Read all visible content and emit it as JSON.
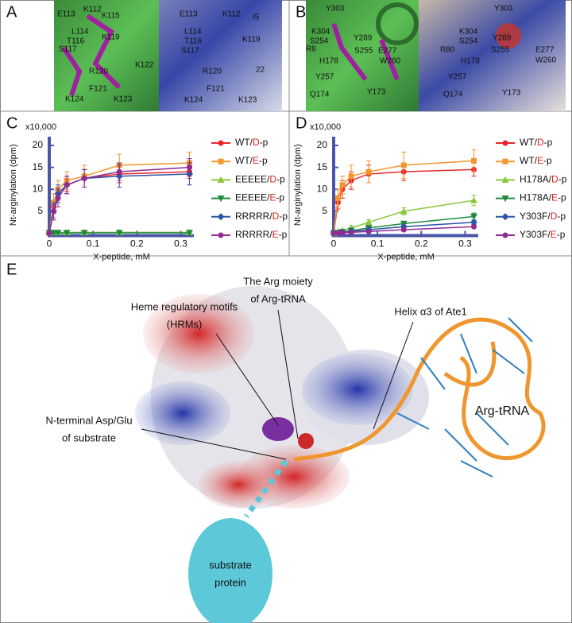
{
  "panel_labels": [
    "A",
    "B",
    "C",
    "D",
    "E"
  ],
  "panel_a": {
    "left_labels": [
      "E113",
      "K112",
      "K115",
      "L114",
      "T116",
      "K119",
      "S117",
      "K122",
      "R120",
      "F121",
      "K124",
      "K123"
    ],
    "right_labels": [
      "E113",
      "K112",
      "I5",
      "L114",
      "T116",
      "K119",
      "S117",
      "R120",
      "22",
      "F121",
      "K124",
      "K123"
    ]
  },
  "panel_b": {
    "left_labels": [
      "Y303",
      "K304",
      "S254",
      "Y289",
      "R8",
      "S255",
      "E277",
      "W260",
      "H178",
      "Y257",
      "Q174",
      "Y173"
    ],
    "right_labels": [
      "Y303",
      "K304",
      "S254",
      "Y289",
      "R80",
      "S255",
      "E277",
      "W260",
      "H178",
      "Y257",
      "Q174",
      "Y173"
    ]
  },
  "chart_data": [
    {
      "type": "line",
      "y_unit": "x10,000",
      "x_label": "X-peptide, mM",
      "y_label": "Nt-arginylation (dpm)",
      "x": [
        0,
        0.01,
        0.02,
        0.04,
        0.08,
        0.16,
        0.32
      ],
      "xlim": [
        0,
        0.33
      ],
      "xticks": [
        0,
        0.1,
        0.2,
        0.3
      ],
      "ylim": [
        0,
        22
      ],
      "yticks": [
        5,
        10,
        15,
        20
      ],
      "series": [
        {
          "name": "WT/D-p",
          "color": "#e8262b",
          "marker": "circle",
          "values": [
            0,
            6,
            9,
            11,
            12.5,
            13.5,
            14
          ],
          "errors": [
            0,
            1.5,
            1.5,
            1.5,
            2,
            2,
            1.5
          ]
        },
        {
          "name": "WT/E-p",
          "color": "#f3962c",
          "marker": "square",
          "values": [
            0,
            7,
            10,
            12,
            13,
            15.5,
            16
          ],
          "errors": [
            0,
            2,
            2,
            2,
            2.5,
            2.5,
            2.5
          ]
        },
        {
          "name": "EEEEE/D-p",
          "color": "#8cc63f",
          "marker": "triangle-up",
          "values": [
            0.2,
            0.2,
            0.2,
            0.2,
            0.2,
            0.2,
            0.2
          ],
          "errors": [
            0,
            0,
            0,
            0,
            0,
            0,
            0
          ]
        },
        {
          "name": "EEEEE/E-p",
          "color": "#1f8a3c",
          "marker": "triangle-down",
          "values": [
            0.1,
            0.1,
            0.1,
            0.1,
            0.1,
            0.1,
            0.1
          ],
          "errors": [
            0,
            0,
            0,
            0,
            0,
            0,
            0
          ]
        },
        {
          "name": "RRRRR/D-p",
          "color": "#2b55a5",
          "marker": "diamond",
          "values": [
            0,
            5,
            9,
            11,
            12.5,
            13,
            13.5
          ],
          "errors": [
            0,
            2,
            2,
            2,
            2,
            2.5,
            2.5
          ]
        },
        {
          "name": "RRRRR/E-p",
          "color": "#8e2c92",
          "marker": "circle",
          "values": [
            0,
            5,
            8,
            11,
            12.5,
            14,
            15
          ],
          "errors": [
            0,
            1.5,
            2,
            2,
            2,
            2,
            2
          ]
        }
      ]
    },
    {
      "type": "line",
      "y_unit": "x10,000",
      "x_label": "X-peptide, mM",
      "y_label": "Nt-arginylation (dpm)",
      "x": [
        0,
        0.01,
        0.02,
        0.04,
        0.08,
        0.16,
        0.32
      ],
      "xlim": [
        0,
        0.33
      ],
      "xticks": [
        0,
        0.1,
        0.2,
        0.3
      ],
      "ylim": [
        0,
        22
      ],
      "yticks": [
        5,
        10,
        15,
        20
      ],
      "series": [
        {
          "name": "WT/D-p",
          "color": "#e8262b",
          "marker": "circle",
          "values": [
            0,
            7,
            10,
            12,
            13.5,
            14,
            14.5
          ],
          "errors": [
            0,
            1.5,
            2,
            2,
            2,
            2,
            1.5
          ]
        },
        {
          "name": "WT/E-p",
          "color": "#f3962c",
          "marker": "square",
          "values": [
            0,
            8,
            11,
            13,
            14,
            15.5,
            16.5
          ],
          "errors": [
            0,
            2,
            2,
            2.5,
            2.5,
            3,
            2.5
          ]
        },
        {
          "name": "H178A/D-p",
          "color": "#8cc63f",
          "marker": "triangle-up",
          "values": [
            0,
            0.3,
            0.6,
            1.2,
            2.5,
            5,
            7.5
          ],
          "errors": [
            0,
            0.3,
            0.3,
            0.5,
            0.6,
            0.8,
            1.2
          ]
        },
        {
          "name": "H178A/E-p",
          "color": "#1f8a3c",
          "marker": "triangle-down",
          "values": [
            0,
            0.1,
            0.3,
            0.6,
            1.2,
            2.2,
            3.8
          ],
          "errors": [
            0,
            0.2,
            0.2,
            0.3,
            0.4,
            0.5,
            0.8
          ]
        },
        {
          "name": "Y303F/D-p",
          "color": "#2b55a5",
          "marker": "diamond",
          "values": [
            0,
            0.1,
            0.2,
            0.4,
            0.8,
            1.5,
            2.5
          ],
          "errors": [
            0,
            0.1,
            0.1,
            0.2,
            0.3,
            0.4,
            0.5
          ]
        },
        {
          "name": "Y303F/E-p",
          "color": "#8e2c92",
          "marker": "circle",
          "values": [
            0,
            0.05,
            0.1,
            0.2,
            0.4,
            0.8,
            1.5
          ],
          "errors": [
            0,
            0.1,
            0.1,
            0.1,
            0.2,
            0.3,
            0.3
          ]
        }
      ]
    }
  ],
  "panel_e": {
    "labels": [
      {
        "lines": [
          "Heme regulatory motifs",
          "(HRMs)"
        ]
      },
      {
        "lines": [
          "The Arg moiety",
          "of Arg-tRNA"
        ]
      },
      {
        "lines": [
          "Helix α3 of Ate1"
        ]
      },
      {
        "lines": [
          "Arg-tRNA"
        ]
      },
      {
        "lines": [
          "N-terminal Asp/Glu",
          "of substrate"
        ]
      },
      {
        "lines": [
          "substrate",
          "protein"
        ]
      }
    ]
  }
}
